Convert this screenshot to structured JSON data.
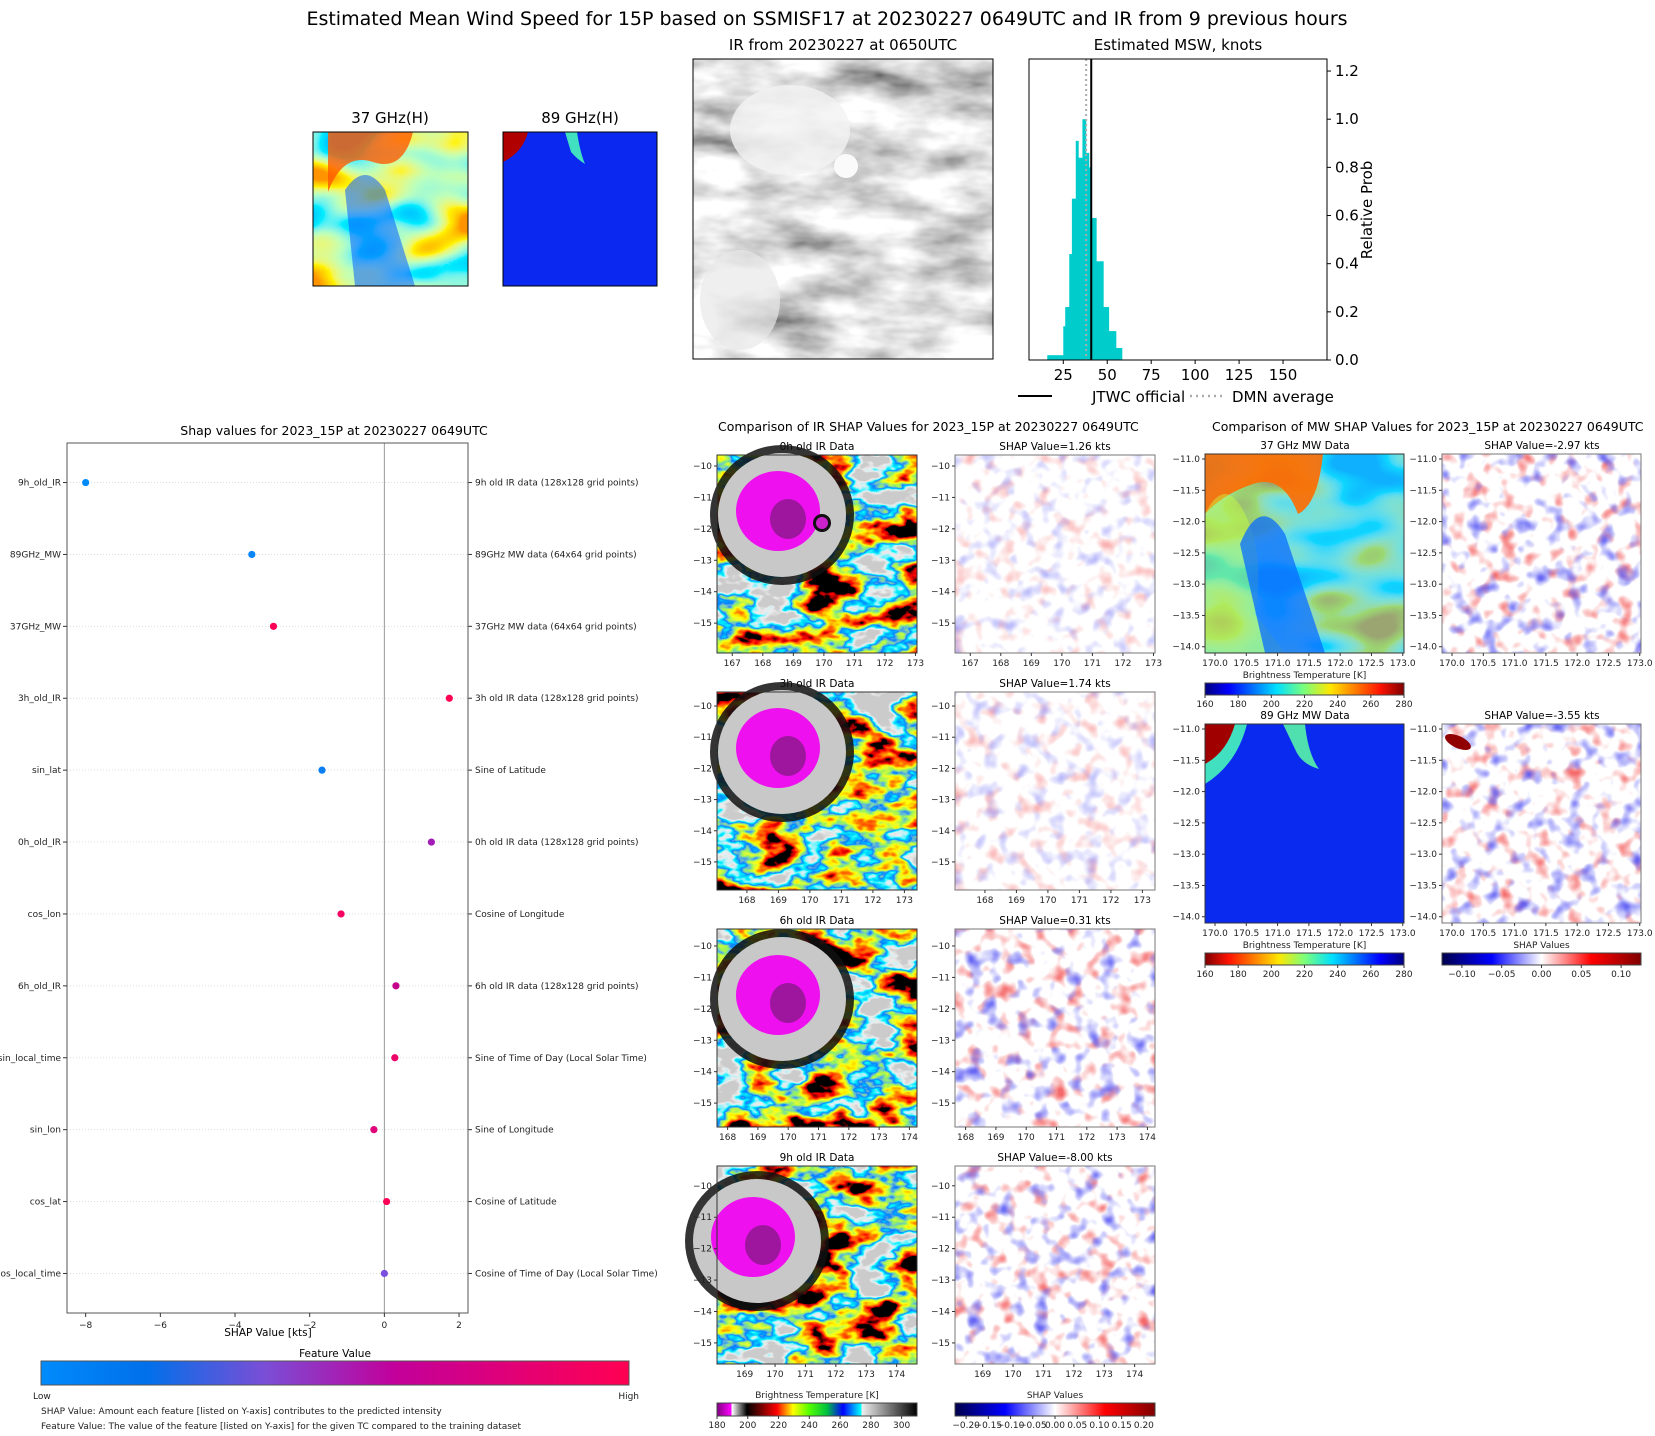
{
  "title": "Estimated Mean Wind Speed for 15P based on SSMISF17 at 20230227 0649UTC and IR from 9 previous hours",
  "thumbs": {
    "mw37_title": "37 GHz(H)",
    "mw89_title": "89 GHz(H)",
    "ir_title": "IR from 20230227 at 0650UTC"
  },
  "colors": {
    "hist_bar": "#00cccc",
    "jtwc_line": "#000000",
    "dmn_line": "#aaaaaa",
    "shap_low": "#008bfb",
    "shap_high": "#ff0052"
  },
  "chart_data": [
    {
      "type": "bar",
      "title": "Estimated MSW, knots",
      "ylabel": "Relative Prob",
      "xlim": [
        5.5,
        175
      ],
      "ylim": [
        0,
        1.25
      ],
      "xticks": [
        25,
        50,
        75,
        100,
        125,
        150
      ],
      "yticks": [
        "0.0",
        "0.2",
        "0.4",
        "0.6",
        "0.8",
        "1.0",
        "1.2"
      ],
      "bins": [
        [
          15.9,
          25.0,
          0.02
        ],
        [
          25.0,
          26.1,
          0.14
        ],
        [
          26.1,
          28.4,
          0.22
        ],
        [
          28.4,
          29.9,
          0.44
        ],
        [
          29.9,
          32.1,
          0.67
        ],
        [
          32.1,
          33.6,
          0.91
        ],
        [
          33.6,
          35.9,
          0.84
        ],
        [
          35.9,
          37.9,
          1.0
        ],
        [
          37.9,
          39.6,
          0.86
        ],
        [
          39.6,
          40.5,
          0.8
        ],
        [
          40.5,
          43.8,
          0.59
        ],
        [
          43.8,
          47.8,
          0.41
        ],
        [
          47.8,
          50.9,
          0.22
        ],
        [
          50.9,
          55.0,
          0.12
        ],
        [
          55.0,
          58.4,
          0.05
        ]
      ],
      "jtwc_official": 40.9,
      "dmn_average": 38.0,
      "legend": [
        "JTWC official",
        "DMN average"
      ],
      "legend_placement": "bottom"
    },
    {
      "type": "scatter",
      "title": "Shap values for 2023_15P at 20230227 0649UTC",
      "xlabel": "SHAP Value [kts]",
      "xlim": [
        -8.5,
        2.24
      ],
      "xticks": [
        "−8",
        "−6",
        "−4",
        "−2",
        "0",
        "2"
      ],
      "xtick_values": [
        -8,
        -6,
        -4,
        -2,
        0,
        2
      ],
      "features": [
        {
          "name": "9h_old_IR",
          "desc": "9h old IR data (128x128 grid points)",
          "shap": -8.0,
          "color": "#008bfb"
        },
        {
          "name": "89GHz_MW",
          "desc": "89GHz MW data (64x64 grid points)",
          "shap": -3.55,
          "color": "#0a85f5"
        },
        {
          "name": "37GHz_MW",
          "desc": "37GHz MW data (64x64 grid points)",
          "shap": -2.97,
          "color": "#fe0055"
        },
        {
          "name": "3h_old_IR",
          "desc": "3h old IR data (128x128 grid points)",
          "shap": 1.74,
          "color": "#ff0052"
        },
        {
          "name": "sin_lat",
          "desc": "Sine of Latitude",
          "shap": -1.67,
          "color": "#0a7ef0"
        },
        {
          "name": "0h_old_IR",
          "desc": "0h old IR data (128x128 grid points)",
          "shap": 1.26,
          "color": "#a21cb8"
        },
        {
          "name": "cos_lon",
          "desc": "Cosine of Longitude",
          "shap": -1.16,
          "color": "#f70361"
        },
        {
          "name": "6h_old_IR",
          "desc": "6h old IR data (128x128 grid points)",
          "shap": 0.31,
          "color": "#c4038a"
        },
        {
          "name": "sin_local_time",
          "desc": "Sine of Time of Day (Local Solar Time)",
          "shap": 0.28,
          "color": "#ec0569"
        },
        {
          "name": "sin_lon",
          "desc": "Sine of Longitude",
          "shap": -0.28,
          "color": "#df067a"
        },
        {
          "name": "cos_lat",
          "desc": "Cosine of Latitude",
          "shap": 0.06,
          "color": "#ff0057"
        },
        {
          "name": "cos_local_time",
          "desc": "Cosine of Time of Day (Local Solar Time)",
          "shap": 0.0,
          "color": "#7b4fde"
        }
      ],
      "colorbar": {
        "label": "Feature Value",
        "low": "Low",
        "high": "High"
      },
      "notes": [
        "SHAP Value: Amount each feature [listed on Y-axis] contributes to the predicted intensity",
        "Feature Value: The value of the feature [listed on Y-axis] for the given TC compared to the training dataset"
      ]
    },
    {
      "type": "heatmap",
      "title": "Comparison of IR SHAP Values for 2023_15P at 20230227 0649UTC",
      "rows": [
        {
          "data_title": "0h old IR Data",
          "shap_title": "SHAP Value=1.26 kts",
          "xlim": [
            166.5,
            173.05
          ],
          "ylim": [
            -15.95,
            -9.65
          ],
          "xticks": [
            167,
            168,
            169,
            170,
            171,
            172,
            173
          ],
          "yticks": [
            -10,
            -11,
            -12,
            -13,
            -14,
            -15
          ]
        },
        {
          "data_title": "3h old IR Data",
          "shap_title": "SHAP Value=1.74 kts",
          "xlim": [
            167.05,
            173.4
          ],
          "ylim": [
            -15.9,
            -9.55
          ],
          "xticks": [
            168,
            169,
            170,
            171,
            172,
            173
          ],
          "yticks": [
            -10,
            -11,
            -12,
            -13,
            -14,
            -15
          ]
        },
        {
          "data_title": "6h old IR Data",
          "shap_title": "SHAP Value=0.31 kts",
          "xlim": [
            167.65,
            174.25
          ],
          "ylim": [
            -15.76,
            -9.46
          ],
          "xticks": [
            168,
            169,
            170,
            171,
            172,
            173,
            174
          ],
          "yticks": [
            -10,
            -11,
            -12,
            -13,
            -14,
            -15
          ]
        },
        {
          "data_title": "9h old IR Data",
          "shap_title": "SHAP Value=-8.00 kts",
          "xlim": [
            168.09,
            174.67
          ],
          "ylim": [
            -15.67,
            -9.37
          ],
          "xticks": [
            169,
            170,
            171,
            172,
            173,
            174
          ],
          "yticks": [
            -10,
            -11,
            -12,
            -13,
            -14,
            -15
          ]
        }
      ],
      "bt_colorbar": {
        "label": "Brightness Temperature [K]",
        "range": [
          180,
          310
        ],
        "ticks": [
          180,
          200,
          220,
          240,
          260,
          280,
          300
        ]
      },
      "shap_colorbar": {
        "label": "SHAP Values",
        "range": [
          -0.225,
          0.225
        ],
        "ticks": [
          "−0.20",
          "−0.15",
          "−0.10",
          "−0.05",
          "0.00",
          "0.05",
          "0.10",
          "0.15",
          "0.20"
        ],
        "tick_values": [
          -0.2,
          -0.15,
          -0.1,
          -0.05,
          0,
          0.05,
          0.1,
          0.15,
          0.2
        ]
      }
    },
    {
      "type": "heatmap",
      "title": "Comparison of MW SHAP Values for 2023_15P at 20230227 0649UTC",
      "rows": [
        {
          "data_title": "37 GHz MW Data",
          "shap_title": "SHAP Value=-2.97 kts",
          "xlim": [
            169.84,
            173.02
          ],
          "ylim": [
            -14.1,
            -10.92
          ],
          "xticks": [
            "170.0",
            "170.5",
            "171.0",
            "171.5",
            "172.0",
            "172.5",
            "173.0"
          ],
          "yticks": [
            "−11.0",
            "−11.5",
            "−12.0",
            "−12.5",
            "−13.0",
            "−13.5",
            "−14.0"
          ]
        },
        {
          "data_title": "89 GHz MW Data",
          "shap_title": "SHAP Value=-3.55 kts",
          "xlim": [
            169.84,
            173.02
          ],
          "ylim": [
            -14.1,
            -10.92
          ],
          "xticks": [
            "170.0",
            "170.5",
            "171.0",
            "171.5",
            "172.0",
            "172.5",
            "173.0"
          ],
          "yticks": [
            "−11.0",
            "−11.5",
            "−12.0",
            "−12.5",
            "−13.0",
            "−13.5",
            "−14.0"
          ]
        }
      ],
      "bt37_colorbar": {
        "label": "Brightness Temperature [K]",
        "range": [
          160,
          280
        ],
        "ticks": [
          160,
          180,
          200,
          220,
          240,
          260,
          280
        ]
      },
      "bt89_colorbar": {
        "label": "Brightness Temperature [K]",
        "range": [
          160,
          280
        ],
        "ticks": [
          160,
          180,
          200,
          220,
          240,
          260,
          280
        ]
      },
      "shap_colorbar": {
        "label": "SHAP Values",
        "range": [
          -0.125,
          0.125
        ],
        "ticks": [
          "−0.10",
          "−0.05",
          "0.00",
          "0.05",
          "0.10"
        ],
        "tick_values": [
          -0.1,
          -0.05,
          0,
          0.05,
          0.1
        ]
      }
    }
  ]
}
